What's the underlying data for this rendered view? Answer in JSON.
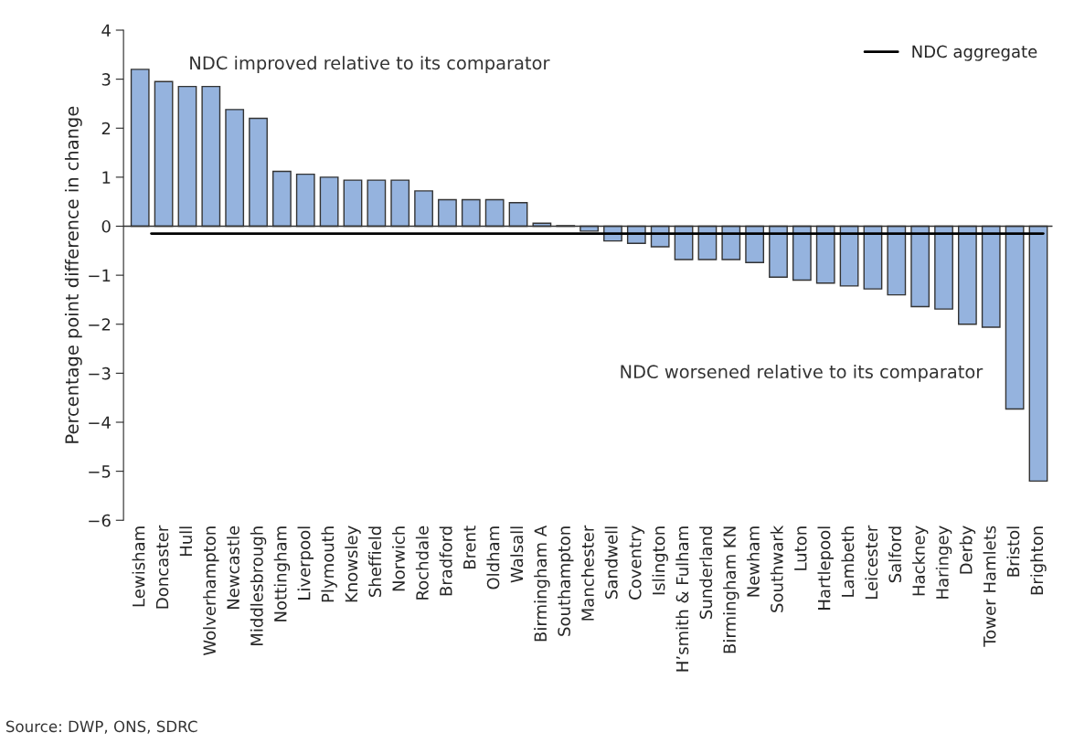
{
  "chart_data": {
    "type": "bar",
    "ylabel": "Percentage point difference in change",
    "categories": [
      "Lewisham",
      "Doncaster",
      "Hull",
      "Wolverhampton",
      "Newcastle",
      "Middlesbrough",
      "Nottingham",
      "Liverpool",
      "Plymouth",
      "Knowsley",
      "Sheffield",
      "Norwich",
      "Rochdale",
      "Bradford",
      "Brent",
      "Oldham",
      "Walsall",
      "Birmingham A",
      "Southampton",
      "Manchester",
      "Sandwell",
      "Coventry",
      "Islington",
      "H’smith & Fulham",
      "Sunderland",
      "Birmingham KN",
      "Newham",
      "Southwark",
      "Luton",
      "Hartlepool",
      "Lambeth",
      "Leicester",
      "Salford",
      "Hackney",
      "Haringey",
      "Derby",
      "Tower Hamlets",
      "Bristol",
      "Brighton"
    ],
    "values": [
      3.2,
      2.95,
      2.85,
      2.85,
      2.38,
      2.2,
      1.12,
      1.06,
      1.0,
      0.94,
      0.94,
      0.94,
      0.72,
      0.54,
      0.54,
      0.54,
      0.48,
      0.06,
      0.01,
      -0.1,
      -0.3,
      -0.35,
      -0.42,
      -0.68,
      -0.68,
      -0.68,
      -0.74,
      -1.04,
      -1.1,
      -1.16,
      -1.22,
      -1.28,
      -1.4,
      -1.64,
      -1.69,
      -2.0,
      -2.06,
      -3.73,
      -5.2
    ],
    "color": "#95b3de",
    "ylim": [
      -6,
      4
    ],
    "yticks": [
      {
        "value": -6,
        "label": "−6"
      },
      {
        "value": -5,
        "label": "−5"
      },
      {
        "value": -4,
        "label": "−4"
      },
      {
        "value": -3,
        "label": "−3"
      },
      {
        "value": -2,
        "label": "−2"
      },
      {
        "value": -1,
        "label": "−1"
      },
      0,
      1,
      2,
      3,
      4
    ],
    "ref_lines": [
      {
        "axis": "y",
        "value": -0.15,
        "label": "NDC aggregate",
        "color": "#000000"
      }
    ],
    "legend": "top right",
    "annotations": [
      "NDC improved relative to its comparator",
      "NDC worsened relative to its comparator",
      "Source: DWP, ONS, SDRC"
    ]
  }
}
